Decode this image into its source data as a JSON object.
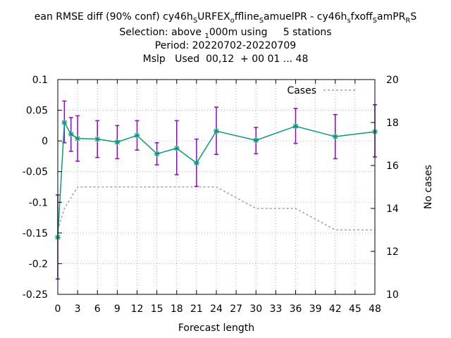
{
  "titles": {
    "line1": "ean RMSE diff (90% conf) cy46h",
    "line1_sub1": "S",
    "line1_b": "URFEX",
    "line1_sub2": "o",
    "line1_c": "ffline",
    "line1_sub3": "S",
    "line1_d": "amuelPR - cy46h",
    "line1_sub4": "s",
    "line1_e": "fxoff",
    "line1_sub5": "S",
    "line1_f": "amPR",
    "line1_sub6": "R",
    "line1_g": "S",
    "line2_a": "Selection: above ",
    "line2_sub": "1",
    "line2_b": "000m using     5 stations",
    "line3": "Period: 20220702-20220709",
    "line4": "Mslp   Used  00,12  + 00 01 ... 48"
  },
  "chart_data": {
    "type": "line",
    "xlabel": "Forecast length",
    "ylabel": "",
    "y2label": "No cases",
    "xlim": [
      0,
      48
    ],
    "ylim": [
      -0.25,
      0.1
    ],
    "y2lim": [
      10,
      20
    ],
    "x_ticks": [
      0,
      3,
      6,
      9,
      12,
      15,
      18,
      21,
      24,
      27,
      30,
      33,
      36,
      39,
      42,
      45,
      48
    ],
    "y_ticks": [
      -0.25,
      -0.2,
      -0.15,
      -0.1,
      -0.05,
      0,
      0.05,
      0.1
    ],
    "y_tick_labels": [
      "-0.25",
      "-0.2",
      "-0.15",
      "-0.1",
      "-0.05",
      "0",
      "0.05",
      "0.1"
    ],
    "y2_ticks": [
      10,
      12,
      14,
      16,
      18,
      20
    ],
    "grid": true,
    "legend_position": "top-right",
    "series": [
      {
        "name": "",
        "color": "#009e73",
        "error_color": "#9400d3",
        "x": [
          0,
          1,
          2,
          3,
          6,
          9,
          12,
          15,
          18,
          21,
          24,
          30,
          36,
          42,
          48
        ],
        "y": [
          -0.157,
          0.03,
          0.011,
          0.004,
          0.003,
          -0.002,
          0.009,
          -0.021,
          -0.012,
          -0.036,
          0.016,
          0.001,
          0.024,
          0.007,
          0.015
        ],
        "err_low": [
          -0.225,
          -0.003,
          -0.017,
          -0.033,
          -0.027,
          -0.029,
          -0.015,
          -0.039,
          -0.055,
          -0.074,
          -0.022,
          -0.021,
          -0.004,
          -0.029,
          -0.026
        ],
        "err_high": [
          -0.088,
          0.065,
          0.038,
          0.041,
          0.033,
          0.025,
          0.033,
          -0.003,
          0.033,
          0.003,
          0.055,
          0.022,
          0.053,
          0.043,
          0.059
        ]
      },
      {
        "name": "Cases",
        "color": "#a0a0a0",
        "axis": "y2",
        "x": [
          0,
          1,
          2,
          3,
          6,
          9,
          12,
          15,
          18,
          21,
          24,
          30,
          36,
          42,
          48
        ],
        "y": [
          13,
          14,
          14.5,
          15,
          15,
          15,
          15,
          15,
          15,
          15,
          15,
          14,
          14,
          13,
          13
        ]
      }
    ]
  }
}
